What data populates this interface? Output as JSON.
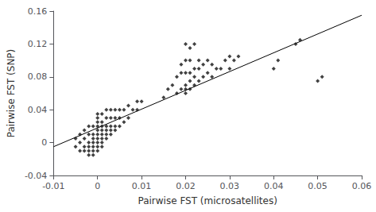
{
  "chart_data": {
    "type": "scatter",
    "xlabel": "Pairwise FST (microsatellites)",
    "ylabel": "Pairwise FST (SNP)",
    "xlim": [
      -0.01,
      0.06
    ],
    "ylim": [
      -0.04,
      0.16
    ],
    "xticks": [
      -0.01,
      0,
      0.01,
      0.02,
      0.03,
      0.04,
      0.05,
      0.06
    ],
    "yticks": [
      -0.04,
      0,
      0.04,
      0.08,
      0.12,
      0.16
    ],
    "grid": false,
    "series": [
      {
        "type": "scatter",
        "marker": "diamond",
        "color": "#111111",
        "x": [
          -0.005,
          -0.005,
          -0.004,
          -0.004,
          -0.004,
          -0.003,
          -0.003,
          -0.003,
          -0.003,
          -0.002,
          -0.002,
          -0.002,
          -0.002,
          -0.002,
          -0.002,
          -0.001,
          -0.001,
          -0.001,
          -0.001,
          -0.001,
          -0.001,
          -0.001,
          0.0,
          0.0,
          0.0,
          0.0,
          0.0,
          0.0,
          0.0,
          0.0,
          0.0,
          0.0,
          0.001,
          0.001,
          0.001,
          0.001,
          0.001,
          0.001,
          0.001,
          0.001,
          0.002,
          0.002,
          0.002,
          0.002,
          0.002,
          0.002,
          0.003,
          0.003,
          0.003,
          0.003,
          0.003,
          0.004,
          0.004,
          0.004,
          0.004,
          0.005,
          0.005,
          0.005,
          0.006,
          0.006,
          0.007,
          0.007,
          0.008,
          0.009,
          0.009,
          0.01,
          0.015,
          0.016,
          0.017,
          0.018,
          0.018,
          0.019,
          0.019,
          0.019,
          0.02,
          0.02,
          0.02,
          0.02,
          0.02,
          0.02,
          0.021,
          0.021,
          0.021,
          0.021,
          0.021,
          0.022,
          0.022,
          0.022,
          0.022,
          0.023,
          0.023,
          0.023,
          0.024,
          0.024,
          0.025,
          0.025,
          0.026,
          0.026,
          0.027,
          0.028,
          0.029,
          0.03,
          0.03,
          0.031,
          0.032,
          0.04,
          0.041,
          0.045,
          0.046,
          0.05,
          0.051
        ],
        "values": [
          -0.005,
          0.005,
          -0.01,
          0.0,
          0.01,
          -0.01,
          -0.005,
          0.005,
          0.015,
          -0.015,
          -0.01,
          -0.005,
          0.0,
          0.01,
          0.02,
          -0.015,
          -0.01,
          -0.005,
          0.0,
          0.005,
          0.01,
          0.02,
          -0.01,
          -0.005,
          0.0,
          0.005,
          0.01,
          0.015,
          0.02,
          0.025,
          0.03,
          0.035,
          -0.005,
          0.0,
          0.005,
          0.01,
          0.015,
          0.02,
          0.025,
          0.035,
          0.005,
          0.01,
          0.015,
          0.02,
          0.03,
          0.04,
          0.01,
          0.015,
          0.02,
          0.03,
          0.04,
          0.015,
          0.02,
          0.03,
          0.04,
          0.02,
          0.03,
          0.04,
          0.025,
          0.04,
          0.03,
          0.045,
          0.04,
          0.04,
          0.05,
          0.05,
          0.055,
          0.065,
          0.07,
          0.06,
          0.08,
          0.065,
          0.085,
          0.095,
          0.06,
          0.065,
          0.07,
          0.085,
          0.1,
          0.12,
          0.065,
          0.075,
          0.085,
          0.1,
          0.115,
          0.07,
          0.08,
          0.09,
          0.12,
          0.075,
          0.09,
          0.1,
          0.08,
          0.095,
          0.085,
          0.1,
          0.08,
          0.095,
          0.09,
          0.09,
          0.1,
          0.09,
          0.105,
          0.1,
          0.105,
          0.09,
          0.1,
          0.12,
          0.125,
          0.075,
          0.08
        ]
      },
      {
        "type": "line",
        "line_style": "solid",
        "color": "#000000",
        "x": [
          -0.01,
          0.06
        ],
        "values": [
          -0.005,
          0.155
        ]
      }
    ]
  }
}
